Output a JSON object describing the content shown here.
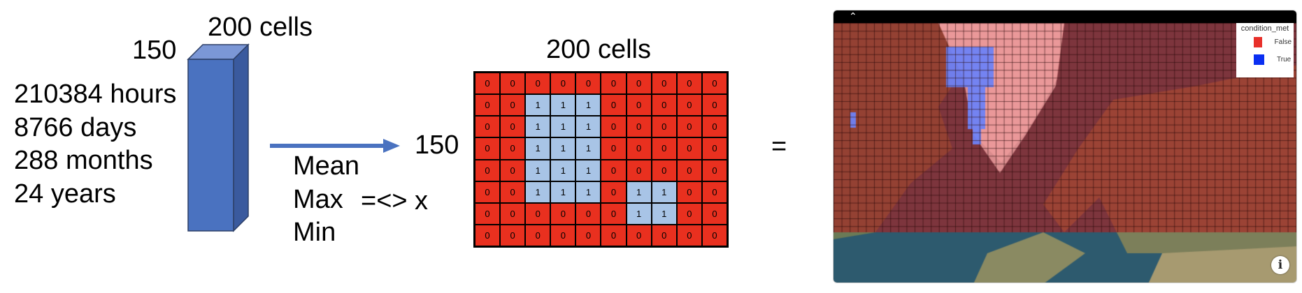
{
  "cube": {
    "depth_label": "200 cells",
    "height_label": "150",
    "resolutions": [
      "210384 hours",
      "8766 days",
      "288 months",
      "24 years"
    ],
    "color": "#4a72c0"
  },
  "aggregation": {
    "ops": [
      "Mean",
      "Max",
      "Min"
    ],
    "comparator": "=<>",
    "threshold": "x"
  },
  "grid": {
    "width_label": "200 cells",
    "height_label": "150",
    "false_color": "#e9301f",
    "true_color": "#a8c4e6",
    "cells": [
      [
        0,
        0,
        0,
        0,
        0,
        0,
        0,
        0,
        0,
        0
      ],
      [
        0,
        0,
        1,
        1,
        1,
        0,
        0,
        0,
        0,
        0
      ],
      [
        0,
        0,
        1,
        1,
        1,
        0,
        0,
        0,
        0,
        0
      ],
      [
        0,
        0,
        1,
        1,
        1,
        0,
        0,
        0,
        0,
        0
      ],
      [
        0,
        0,
        1,
        1,
        1,
        0,
        0,
        0,
        0,
        0
      ],
      [
        0,
        0,
        1,
        1,
        1,
        0,
        1,
        1,
        0,
        0
      ],
      [
        0,
        0,
        0,
        0,
        0,
        0,
        1,
        1,
        0,
        0
      ],
      [
        0,
        0,
        0,
        0,
        0,
        0,
        0,
        0,
        0,
        0
      ]
    ]
  },
  "equals": "=",
  "map": {
    "legend": {
      "title": "condition_met",
      "items": [
        {
          "label": "False",
          "color": "#e8302a"
        },
        {
          "label": "True",
          "color": "#0a2ff2"
        }
      ]
    },
    "collapse_icon": "chevron-up-icon",
    "info_icon": "info-icon"
  }
}
